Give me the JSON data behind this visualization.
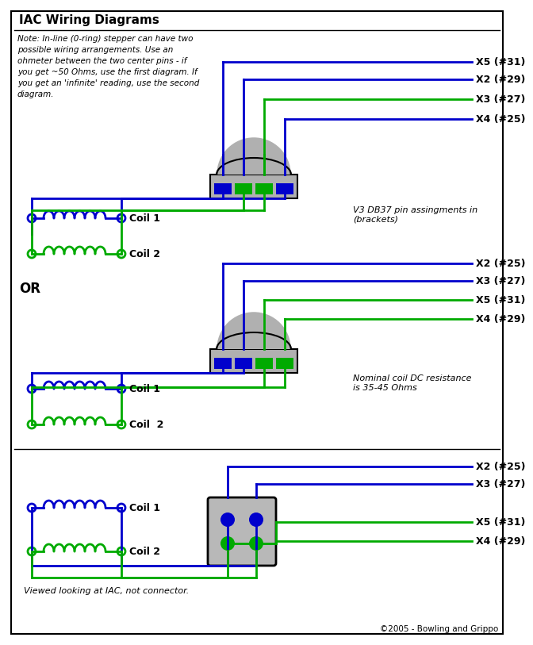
{
  "title": "IAC Wiring Diagrams",
  "note_text": "Note: In-line (0-ring) stepper can have two\npossible wiring arrangements. Use an\nohmeter between the two center pins - if\nyou get ~50 Ohms, use the first diagram. If\nyou get an 'infinite' reading, use the second\ndiagram.",
  "blue": "#0000CC",
  "green": "#00AA00",
  "gray": "#B0B0B0",
  "black": "#000000",
  "white": "#FFFFFF",
  "db37_note": "V3 DB37 pin assingments in\n(brackets)",
  "dc_note": "Nominal coil DC resistance\nis 35-45 Ohms",
  "viewed_note": "Viewed looking at IAC, not connector.",
  "copyright": "©2005 - Bowling and Grippo",
  "diag1_labels": [
    "X5 (#31)",
    "X2 (#29)",
    "X3 (#27)",
    "X4 (#25)"
  ],
  "diag1_colors": [
    "blue",
    "blue",
    "green",
    "blue"
  ],
  "diag2_labels": [
    "X2 (#25)",
    "X3 (#27)",
    "X5 (#31)",
    "X4 (#29)"
  ],
  "diag2_colors": [
    "blue",
    "blue",
    "green",
    "green"
  ],
  "diag3_labels": [
    "X2 (#25)",
    "X3 (#27)",
    "X5 (#31)",
    "X4 (#29)"
  ],
  "diag3_colors": [
    "blue",
    "blue",
    "green",
    "green"
  ]
}
